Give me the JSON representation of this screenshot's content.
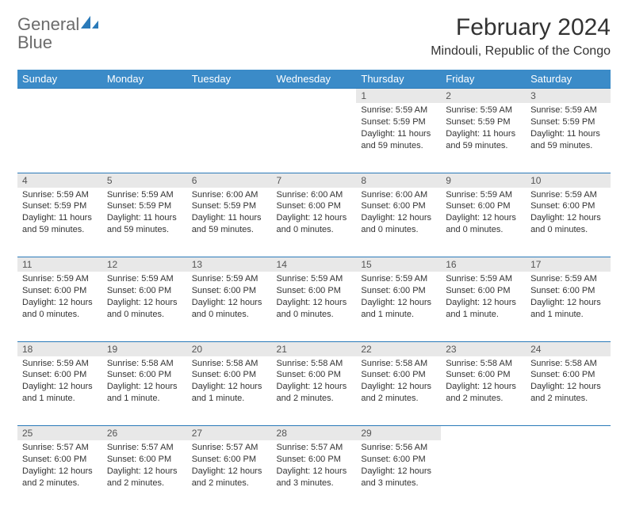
{
  "logo": {
    "text_general": "General",
    "text_blue": "Blue",
    "icon_color": "#2a7ab9"
  },
  "title": "February 2024",
  "location": "Mindouli, Republic of the Congo",
  "colors": {
    "header_bg": "#3b8bc8",
    "header_text": "#ffffff",
    "daynum_bg": "#e8e8e8",
    "border": "#2a7ab9",
    "text": "#333333"
  },
  "day_headers": [
    "Sunday",
    "Monday",
    "Tuesday",
    "Wednesday",
    "Thursday",
    "Friday",
    "Saturday"
  ],
  "weeks": [
    [
      null,
      null,
      null,
      null,
      {
        "n": "1",
        "sr": "Sunrise: 5:59 AM",
        "ss": "Sunset: 5:59 PM",
        "dl1": "Daylight: 11 hours",
        "dl2": "and 59 minutes."
      },
      {
        "n": "2",
        "sr": "Sunrise: 5:59 AM",
        "ss": "Sunset: 5:59 PM",
        "dl1": "Daylight: 11 hours",
        "dl2": "and 59 minutes."
      },
      {
        "n": "3",
        "sr": "Sunrise: 5:59 AM",
        "ss": "Sunset: 5:59 PM",
        "dl1": "Daylight: 11 hours",
        "dl2": "and 59 minutes."
      }
    ],
    [
      {
        "n": "4",
        "sr": "Sunrise: 5:59 AM",
        "ss": "Sunset: 5:59 PM",
        "dl1": "Daylight: 11 hours",
        "dl2": "and 59 minutes."
      },
      {
        "n": "5",
        "sr": "Sunrise: 5:59 AM",
        "ss": "Sunset: 5:59 PM",
        "dl1": "Daylight: 11 hours",
        "dl2": "and 59 minutes."
      },
      {
        "n": "6",
        "sr": "Sunrise: 6:00 AM",
        "ss": "Sunset: 5:59 PM",
        "dl1": "Daylight: 11 hours",
        "dl2": "and 59 minutes."
      },
      {
        "n": "7",
        "sr": "Sunrise: 6:00 AM",
        "ss": "Sunset: 6:00 PM",
        "dl1": "Daylight: 12 hours",
        "dl2": "and 0 minutes."
      },
      {
        "n": "8",
        "sr": "Sunrise: 6:00 AM",
        "ss": "Sunset: 6:00 PM",
        "dl1": "Daylight: 12 hours",
        "dl2": "and 0 minutes."
      },
      {
        "n": "9",
        "sr": "Sunrise: 5:59 AM",
        "ss": "Sunset: 6:00 PM",
        "dl1": "Daylight: 12 hours",
        "dl2": "and 0 minutes."
      },
      {
        "n": "10",
        "sr": "Sunrise: 5:59 AM",
        "ss": "Sunset: 6:00 PM",
        "dl1": "Daylight: 12 hours",
        "dl2": "and 0 minutes."
      }
    ],
    [
      {
        "n": "11",
        "sr": "Sunrise: 5:59 AM",
        "ss": "Sunset: 6:00 PM",
        "dl1": "Daylight: 12 hours",
        "dl2": "and 0 minutes."
      },
      {
        "n": "12",
        "sr": "Sunrise: 5:59 AM",
        "ss": "Sunset: 6:00 PM",
        "dl1": "Daylight: 12 hours",
        "dl2": "and 0 minutes."
      },
      {
        "n": "13",
        "sr": "Sunrise: 5:59 AM",
        "ss": "Sunset: 6:00 PM",
        "dl1": "Daylight: 12 hours",
        "dl2": "and 0 minutes."
      },
      {
        "n": "14",
        "sr": "Sunrise: 5:59 AM",
        "ss": "Sunset: 6:00 PM",
        "dl1": "Daylight: 12 hours",
        "dl2": "and 0 minutes."
      },
      {
        "n": "15",
        "sr": "Sunrise: 5:59 AM",
        "ss": "Sunset: 6:00 PM",
        "dl1": "Daylight: 12 hours",
        "dl2": "and 1 minute."
      },
      {
        "n": "16",
        "sr": "Sunrise: 5:59 AM",
        "ss": "Sunset: 6:00 PM",
        "dl1": "Daylight: 12 hours",
        "dl2": "and 1 minute."
      },
      {
        "n": "17",
        "sr": "Sunrise: 5:59 AM",
        "ss": "Sunset: 6:00 PM",
        "dl1": "Daylight: 12 hours",
        "dl2": "and 1 minute."
      }
    ],
    [
      {
        "n": "18",
        "sr": "Sunrise: 5:59 AM",
        "ss": "Sunset: 6:00 PM",
        "dl1": "Daylight: 12 hours",
        "dl2": "and 1 minute."
      },
      {
        "n": "19",
        "sr": "Sunrise: 5:58 AM",
        "ss": "Sunset: 6:00 PM",
        "dl1": "Daylight: 12 hours",
        "dl2": "and 1 minute."
      },
      {
        "n": "20",
        "sr": "Sunrise: 5:58 AM",
        "ss": "Sunset: 6:00 PM",
        "dl1": "Daylight: 12 hours",
        "dl2": "and 1 minute."
      },
      {
        "n": "21",
        "sr": "Sunrise: 5:58 AM",
        "ss": "Sunset: 6:00 PM",
        "dl1": "Daylight: 12 hours",
        "dl2": "and 2 minutes."
      },
      {
        "n": "22",
        "sr": "Sunrise: 5:58 AM",
        "ss": "Sunset: 6:00 PM",
        "dl1": "Daylight: 12 hours",
        "dl2": "and 2 minutes."
      },
      {
        "n": "23",
        "sr": "Sunrise: 5:58 AM",
        "ss": "Sunset: 6:00 PM",
        "dl1": "Daylight: 12 hours",
        "dl2": "and 2 minutes."
      },
      {
        "n": "24",
        "sr": "Sunrise: 5:58 AM",
        "ss": "Sunset: 6:00 PM",
        "dl1": "Daylight: 12 hours",
        "dl2": "and 2 minutes."
      }
    ],
    [
      {
        "n": "25",
        "sr": "Sunrise: 5:57 AM",
        "ss": "Sunset: 6:00 PM",
        "dl1": "Daylight: 12 hours",
        "dl2": "and 2 minutes."
      },
      {
        "n": "26",
        "sr": "Sunrise: 5:57 AM",
        "ss": "Sunset: 6:00 PM",
        "dl1": "Daylight: 12 hours",
        "dl2": "and 2 minutes."
      },
      {
        "n": "27",
        "sr": "Sunrise: 5:57 AM",
        "ss": "Sunset: 6:00 PM",
        "dl1": "Daylight: 12 hours",
        "dl2": "and 2 minutes."
      },
      {
        "n": "28",
        "sr": "Sunrise: 5:57 AM",
        "ss": "Sunset: 6:00 PM",
        "dl1": "Daylight: 12 hours",
        "dl2": "and 3 minutes."
      },
      {
        "n": "29",
        "sr": "Sunrise: 5:56 AM",
        "ss": "Sunset: 6:00 PM",
        "dl1": "Daylight: 12 hours",
        "dl2": "and 3 minutes."
      },
      null,
      null
    ]
  ]
}
